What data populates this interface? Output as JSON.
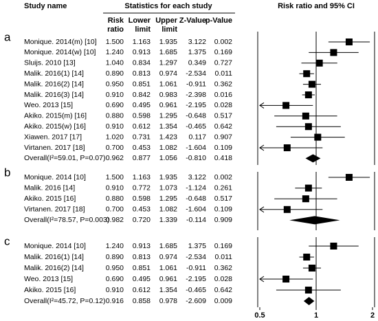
{
  "chart_data": {
    "type": "forest",
    "headers": {
      "study": "Study name",
      "group": "Statistics for each study",
      "plot": "Risk ratio and 95% CI",
      "columns": [
        [
          "Risk",
          "ratio"
        ],
        [
          "Lower",
          "limit"
        ],
        [
          "Upper",
          "limit"
        ],
        [
          "Z-Value"
        ],
        [
          "p-Value"
        ]
      ]
    },
    "xscale": "log",
    "xlim": [
      0.5,
      2
    ],
    "xticks": [
      0.5,
      1,
      2
    ],
    "reference": 1,
    "color": "#000000",
    "panels": [
      {
        "label": "a",
        "studies": [
          [
            "Monique. 2014(m) [10]",
            "1.500",
            "1.163",
            "1.935",
            "3.122",
            "0.002"
          ],
          [
            "Monique. 2014(w) [10]",
            "1.240",
            "0.913",
            "1.685",
            "1.375",
            "0.169"
          ],
          [
            "Sluijs. 2010 [13]",
            "1.040",
            "0.834",
            "1.297",
            "0.349",
            "0.727"
          ],
          [
            "Malik. 2016(1) [14]",
            "0.890",
            "0.813",
            "0.974",
            "-2.534",
            "0.011"
          ],
          [
            "Malik. 2016(2) [14]",
            "0.950",
            "0.851",
            "1.061",
            "-0.911",
            "0.362"
          ],
          [
            "Malik. 2016(3) [14]",
            "0.910",
            "0.842",
            "0.983",
            "-2.398",
            "0.016"
          ],
          [
            "Weo. 2013 [15]",
            "0.690",
            "0.495",
            "0.961",
            "-2.195",
            "0.028"
          ],
          [
            "Akiko. 2015(m) [16]",
            "0.880",
            "0.598",
            "1.295",
            "-0.648",
            "0.517"
          ],
          [
            "Akiko. 2015(w) [16]",
            "0.910",
            "0.612",
            "1.354",
            "-0.465",
            "0.642"
          ],
          [
            "Xiawen. 2017 [17]",
            "1.020",
            "0.731",
            "1.423",
            "0.117",
            "0.907"
          ],
          [
            "Virtanen. 2017 [18]",
            "0.700",
            "0.453",
            "1.082",
            "-1.604",
            "0.109"
          ]
        ],
        "overall": [
          "Overall(I²=59.01, P=0.07)",
          "0.962",
          "0.877",
          "1.056",
          "-0.810",
          "0.418"
        ]
      },
      {
        "label": "b",
        "studies": [
          [
            "Monique. 2014 [10]",
            "1.500",
            "1.163",
            "1.935",
            "3.122",
            "0.002"
          ],
          [
            "Malik. 2016 [14]",
            "0.910",
            "0.772",
            "1.073",
            "-1.124",
            "0.261"
          ],
          [
            "Akiko. 2015 [16]",
            "0.880",
            "0.598",
            "1.295",
            "-0.648",
            "0.517"
          ],
          [
            "Virtanen. 2017 [18]",
            "0.700",
            "0.453",
            "1.082",
            "-1.604",
            "0.109"
          ]
        ],
        "overall": [
          "Overall(I²=78.57, P=0.003)",
          "0.982",
          "0.720",
          "1.339",
          "-0.114",
          "0.909"
        ]
      },
      {
        "label": "c",
        "studies": [
          [
            "Monique. 2014 [10]",
            "1.240",
            "0.913",
            "1.685",
            "1.375",
            "0.169"
          ],
          [
            "Malik. 2016(1) [14]",
            "0.890",
            "0.813",
            "0.974",
            "-2.534",
            "0.011"
          ],
          [
            "Malik. 2016(2) [14]",
            "0.950",
            "0.851",
            "1.061",
            "-0.911",
            "0.362"
          ],
          [
            "Weo. 2013 [15]",
            "0.690",
            "0.495",
            "0.961",
            "-2.195",
            "0.028"
          ],
          [
            "Akiko. 2015 [16]",
            "0.910",
            "0.612",
            "1.354",
            "-0.465",
            "0.642"
          ]
        ],
        "overall": [
          "Overall(I²=45.72, P=0.12)",
          "0.916",
          "0.858",
          "0.978",
          "-2.609",
          "0.009"
        ]
      }
    ]
  }
}
